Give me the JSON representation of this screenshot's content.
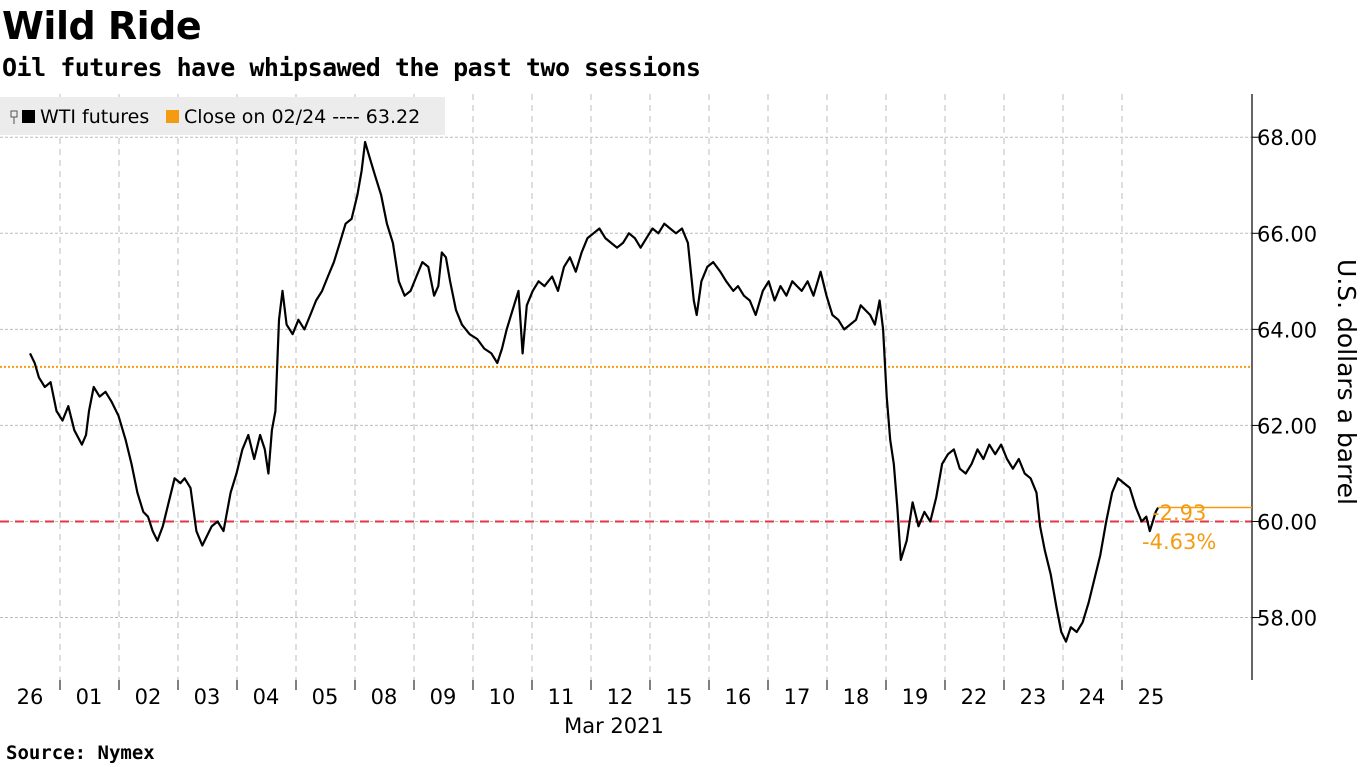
{
  "header": {
    "title": "Wild Ride",
    "subtitle": "Oil futures have whipsawed the past two sessions"
  },
  "footer": {
    "source": "Source: Nymex"
  },
  "colors": {
    "series": "#000000",
    "reference": "#f39c12",
    "threshold": "#e8334a",
    "grid": "#bdbdbd",
    "legend_bg": "#ececec"
  },
  "chart_data": {
    "type": "line",
    "ylabel": "U.S. dollars a barrel",
    "xlabel": "Mar 2021",
    "ylim": [
      56.7,
      68.9
    ],
    "y_ticks": [
      {
        "value": 58,
        "label": "58.00"
      },
      {
        "value": 60,
        "label": "60.00"
      },
      {
        "value": 62,
        "label": "62.00"
      },
      {
        "value": 64,
        "label": "64.00"
      },
      {
        "value": 66,
        "label": "66.00"
      },
      {
        "value": 68,
        "label": "68.00"
      }
    ],
    "x_categories": [
      "26",
      "01",
      "02",
      "03",
      "04",
      "05",
      "08",
      "09",
      "10",
      "11",
      "12",
      "15",
      "16",
      "17",
      "18",
      "19",
      "22",
      "23",
      "24",
      "25"
    ],
    "legend": [
      {
        "label": "WTI futures",
        "color": "#000000"
      },
      {
        "label": "Close on 02/24 ---- 63.22",
        "color": "#f39c12"
      }
    ],
    "reference_line": {
      "label": "Close on 02/24",
      "value": 63.22
    },
    "threshold_line": {
      "value": 60.0
    },
    "last_value": 60.29,
    "annotation": {
      "change": "-2.93",
      "change_pct": "-4.63%"
    },
    "series": [
      {
        "name": "WTI futures",
        "values": [
          [
            0.0,
            63.5
          ],
          [
            0.08,
            63.3
          ],
          [
            0.15,
            63.0
          ],
          [
            0.25,
            62.8
          ],
          [
            0.35,
            62.9
          ],
          [
            0.45,
            62.3
          ],
          [
            0.55,
            62.1
          ],
          [
            0.65,
            62.4
          ],
          [
            0.75,
            61.9
          ],
          [
            0.88,
            61.6
          ],
          [
            0.95,
            61.8
          ],
          [
            1.0,
            62.3
          ],
          [
            1.08,
            62.8
          ],
          [
            1.18,
            62.6
          ],
          [
            1.28,
            62.7
          ],
          [
            1.38,
            62.5
          ],
          [
            1.5,
            62.2
          ],
          [
            1.62,
            61.7
          ],
          [
            1.72,
            61.2
          ],
          [
            1.82,
            60.6
          ],
          [
            1.92,
            60.2
          ],
          [
            2.0,
            60.1
          ],
          [
            2.08,
            59.8
          ],
          [
            2.16,
            59.6
          ],
          [
            2.25,
            59.9
          ],
          [
            2.35,
            60.4
          ],
          [
            2.45,
            60.9
          ],
          [
            2.55,
            60.8
          ],
          [
            2.62,
            60.9
          ],
          [
            2.72,
            60.7
          ],
          [
            2.82,
            59.8
          ],
          [
            2.92,
            59.5
          ],
          [
            3.0,
            59.7
          ],
          [
            3.08,
            59.9
          ],
          [
            3.18,
            60.0
          ],
          [
            3.28,
            59.8
          ],
          [
            3.4,
            60.6
          ],
          [
            3.5,
            61.0
          ],
          [
            3.6,
            61.5
          ],
          [
            3.7,
            61.8
          ],
          [
            3.8,
            61.3
          ],
          [
            3.9,
            61.8
          ],
          [
            3.98,
            61.5
          ],
          [
            4.04,
            61.0
          ],
          [
            4.1,
            61.9
          ],
          [
            4.16,
            62.3
          ],
          [
            4.22,
            64.2
          ],
          [
            4.28,
            64.8
          ],
          [
            4.35,
            64.1
          ],
          [
            4.45,
            63.9
          ],
          [
            4.55,
            64.2
          ],
          [
            4.65,
            64.0
          ],
          [
            4.75,
            64.3
          ],
          [
            4.85,
            64.6
          ],
          [
            4.95,
            64.8
          ],
          [
            5.05,
            65.1
          ],
          [
            5.15,
            65.4
          ],
          [
            5.25,
            65.8
          ],
          [
            5.35,
            66.2
          ],
          [
            5.45,
            66.3
          ],
          [
            5.55,
            66.8
          ],
          [
            5.62,
            67.3
          ],
          [
            5.68,
            67.9
          ],
          [
            5.75,
            67.6
          ],
          [
            5.85,
            67.2
          ],
          [
            5.95,
            66.8
          ],
          [
            6.05,
            66.2
          ],
          [
            6.15,
            65.8
          ],
          [
            6.25,
            65.0
          ],
          [
            6.35,
            64.7
          ],
          [
            6.45,
            64.8
          ],
          [
            6.55,
            65.1
          ],
          [
            6.65,
            65.4
          ],
          [
            6.75,
            65.3
          ],
          [
            6.85,
            64.7
          ],
          [
            6.92,
            64.9
          ],
          [
            6.98,
            65.6
          ],
          [
            7.05,
            65.5
          ],
          [
            7.12,
            65.0
          ],
          [
            7.22,
            64.4
          ],
          [
            7.32,
            64.1
          ],
          [
            7.45,
            63.9
          ],
          [
            7.58,
            63.8
          ],
          [
            7.7,
            63.6
          ],
          [
            7.82,
            63.5
          ],
          [
            7.92,
            63.3
          ],
          [
            8.0,
            63.6
          ],
          [
            8.08,
            64.0
          ],
          [
            8.18,
            64.4
          ],
          [
            8.28,
            64.8
          ],
          [
            8.35,
            63.5
          ],
          [
            8.42,
            64.5
          ],
          [
            8.52,
            64.8
          ],
          [
            8.62,
            65.0
          ],
          [
            8.72,
            64.9
          ],
          [
            8.85,
            65.1
          ],
          [
            8.95,
            64.8
          ],
          [
            9.05,
            65.3
          ],
          [
            9.15,
            65.5
          ],
          [
            9.25,
            65.2
          ],
          [
            9.35,
            65.6
          ],
          [
            9.45,
            65.9
          ],
          [
            9.55,
            66.0
          ],
          [
            9.65,
            66.1
          ],
          [
            9.75,
            65.9
          ],
          [
            9.85,
            65.8
          ],
          [
            9.95,
            65.7
          ],
          [
            10.05,
            65.8
          ],
          [
            10.15,
            66.0
          ],
          [
            10.25,
            65.9
          ],
          [
            10.35,
            65.7
          ],
          [
            10.45,
            65.9
          ],
          [
            10.55,
            66.1
          ],
          [
            10.65,
            66.0
          ],
          [
            10.75,
            66.2
          ],
          [
            10.85,
            66.1
          ],
          [
            10.95,
            66.0
          ],
          [
            11.05,
            66.1
          ],
          [
            11.15,
            65.8
          ],
          [
            11.25,
            64.6
          ],
          [
            11.3,
            64.3
          ],
          [
            11.38,
            65.0
          ],
          [
            11.48,
            65.3
          ],
          [
            11.58,
            65.4
          ],
          [
            11.7,
            65.2
          ],
          [
            11.8,
            65.0
          ],
          [
            11.92,
            64.8
          ],
          [
            12.0,
            64.9
          ],
          [
            12.1,
            64.7
          ],
          [
            12.2,
            64.6
          ],
          [
            12.3,
            64.3
          ],
          [
            12.42,
            64.8
          ],
          [
            12.52,
            65.0
          ],
          [
            12.62,
            64.6
          ],
          [
            12.72,
            64.9
          ],
          [
            12.82,
            64.7
          ],
          [
            12.92,
            65.0
          ],
          [
            13.0,
            64.9
          ],
          [
            13.08,
            64.8
          ],
          [
            13.18,
            65.0
          ],
          [
            13.28,
            64.7
          ],
          [
            13.4,
            65.2
          ],
          [
            13.5,
            64.7
          ],
          [
            13.6,
            64.3
          ],
          [
            13.7,
            64.2
          ],
          [
            13.8,
            64.0
          ],
          [
            13.9,
            64.1
          ],
          [
            14.0,
            64.2
          ],
          [
            14.08,
            64.5
          ],
          [
            14.16,
            64.4
          ],
          [
            14.24,
            64.3
          ],
          [
            14.32,
            64.1
          ],
          [
            14.4,
            64.6
          ],
          [
            14.46,
            64.0
          ],
          [
            14.52,
            62.6
          ],
          [
            14.58,
            61.7
          ],
          [
            14.64,
            61.2
          ],
          [
            14.7,
            60.3
          ],
          [
            14.76,
            59.2
          ],
          [
            14.86,
            59.6
          ],
          [
            14.96,
            60.4
          ],
          [
            15.06,
            59.9
          ],
          [
            15.16,
            60.2
          ],
          [
            15.26,
            60.0
          ],
          [
            15.36,
            60.5
          ],
          [
            15.46,
            61.2
          ],
          [
            15.56,
            61.4
          ],
          [
            15.66,
            61.5
          ],
          [
            15.76,
            61.1
          ],
          [
            15.86,
            61.0
          ],
          [
            15.96,
            61.2
          ],
          [
            16.06,
            61.5
          ],
          [
            16.16,
            61.3
          ],
          [
            16.26,
            61.6
          ],
          [
            16.36,
            61.4
          ],
          [
            16.46,
            61.6
          ],
          [
            16.56,
            61.3
          ],
          [
            16.66,
            61.1
          ],
          [
            16.76,
            61.3
          ],
          [
            16.86,
            61.0
          ],
          [
            16.96,
            60.9
          ],
          [
            17.06,
            60.6
          ],
          [
            17.12,
            59.9
          ],
          [
            17.2,
            59.4
          ],
          [
            17.3,
            58.9
          ],
          [
            17.4,
            58.2
          ],
          [
            17.48,
            57.7
          ],
          [
            17.56,
            57.5
          ],
          [
            17.64,
            57.8
          ],
          [
            17.74,
            57.7
          ],
          [
            17.84,
            57.9
          ],
          [
            17.94,
            58.3
          ],
          [
            18.04,
            58.8
          ],
          [
            18.14,
            59.3
          ],
          [
            18.24,
            60.0
          ],
          [
            18.34,
            60.6
          ],
          [
            18.44,
            60.9
          ],
          [
            18.54,
            60.8
          ],
          [
            18.64,
            60.7
          ],
          [
            18.74,
            60.3
          ],
          [
            18.84,
            60.0
          ],
          [
            18.92,
            60.1
          ],
          [
            18.98,
            59.8
          ],
          [
            19.03,
            60.0
          ],
          [
            19.08,
            60.2
          ],
          [
            19.12,
            60.29
          ]
        ]
      }
    ]
  }
}
